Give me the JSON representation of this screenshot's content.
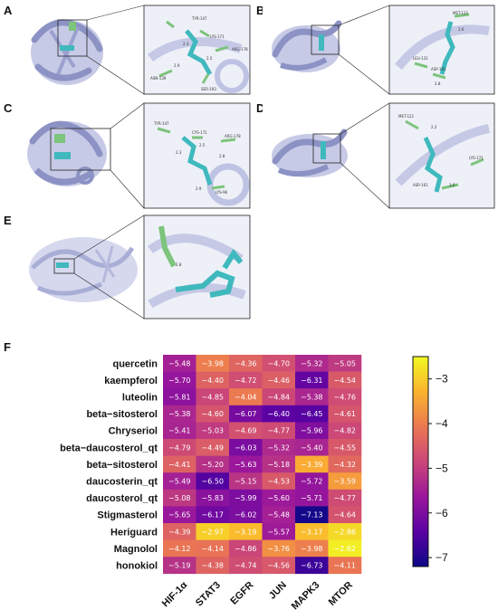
{
  "panels": {
    "A": {
      "letter": "A",
      "residues": [
        "TYR-147",
        "LYS-171",
        "ARG-178",
        "ASN-139",
        "SER-193"
      ],
      "distances": [
        "2.3",
        "2.5",
        "2.9"
      ]
    },
    "B": {
      "letter": "B",
      "residues": [
        "MET-121",
        "LEU-131",
        "ASP-161"
      ],
      "distances": [
        "2.6",
        "2.8"
      ]
    },
    "C": {
      "letter": "C",
      "residues": [
        "TYR-147",
        "CYS-171",
        "ARG-178",
        "LYS-96"
      ],
      "distances": [
        "2.3",
        "2.5",
        "2.8",
        "2.9"
      ]
    },
    "D": {
      "letter": "D",
      "residues": [
        "MET-121",
        "LYS-171",
        "ASP-161"
      ],
      "distances": [
        "2.2",
        "3.0"
      ]
    },
    "E": {
      "letter": "E",
      "residues": [],
      "distances": [
        "2.8"
      ]
    },
    "F": {
      "letter": "F"
    }
  },
  "colors": {
    "protein": "#a9aed6",
    "protein_dark": "#8c92c4",
    "ligand": "#3fb9bd",
    "residue": "#7dc47c"
  },
  "chart_data": {
    "type": "heatmap",
    "rows": [
      "quercetin",
      "kaempferol",
      "luteolin",
      "beta−sitosterol",
      "Chryseriol",
      "beta−daucosterol_qt",
      "beta−sitosterol",
      "daucosterin_qt",
      "daucosterol_qt",
      "Stigmasterol",
      "Heriguard",
      "Magnolol",
      "honokiol"
    ],
    "columns": [
      "HIF-1α",
      "STAT3",
      "EGFR",
      "JUN",
      "MAPK3",
      "MTOR"
    ],
    "values": [
      [
        -5.48,
        -3.98,
        -4.36,
        -4.7,
        -5.32,
        -5.05
      ],
      [
        -5.7,
        -4.4,
        -4.72,
        -4.46,
        -6.31,
        -4.54
      ],
      [
        -5.81,
        -4.85,
        -4.04,
        -4.84,
        -5.38,
        -4.76
      ],
      [
        -5.38,
        -4.6,
        -6.07,
        -6.4,
        -6.45,
        -4.61
      ],
      [
        -5.41,
        -5.03,
        -4.69,
        -4.77,
        -5.96,
        -4.82
      ],
      [
        -4.79,
        -4.49,
        -6.03,
        -5.32,
        -5.4,
        -4.55
      ],
      [
        -4.41,
        -5.2,
        -5.63,
        -5.18,
        -3.39,
        -4.32
      ],
      [
        -5.49,
        -6.5,
        -5.15,
        -4.53,
        -5.72,
        -3.59
      ],
      [
        -5.08,
        -5.83,
        -5.99,
        -5.6,
        -5.71,
        -4.77
      ],
      [
        -5.65,
        -6.17,
        -6.02,
        -5.48,
        -7.13,
        -4.64
      ],
      [
        -4.39,
        -2.97,
        -3.19,
        -5.57,
        -3.17,
        -2.86
      ],
      [
        -4.12,
        -4.14,
        -4.86,
        -3.76,
        -3.98,
        -2.62
      ],
      [
        -5.19,
        -4.38,
        -4.74,
        -4.56,
        -6.73,
        -4.11
      ]
    ],
    "value_labels": [
      [
        "−5.48",
        "−3.98",
        "−4.36",
        "−4.70",
        "−5.32",
        "−5.05"
      ],
      [
        "−5.70",
        "−4.40",
        "−4.72",
        "−4.46",
        "−6.31",
        "−4.54"
      ],
      [
        "−5.81",
        "−4.85",
        "−4.04",
        "−4.84",
        "−5.38",
        "−4.76"
      ],
      [
        "−5.38",
        "−4.60",
        "−6.07",
        "−6.40",
        "−6.45",
        "−4.61"
      ],
      [
        "−5.41",
        "−5.03",
        "−4.69",
        "−4.77",
        "−5.96",
        "−4.82"
      ],
      [
        "−4.79",
        "−4.49",
        "−6.03",
        "−5.32",
        "−5.40",
        "−4.55"
      ],
      [
        "−4.41",
        "−5.20",
        "−5.63",
        "−5.18",
        "−3.39",
        "−4.32"
      ],
      [
        "−5.49",
        "−6.50",
        "−5.15",
        "−4.53",
        "−5.72",
        "−3.59"
      ],
      [
        "−5.08",
        "−5.83",
        "−5.99",
        "−5.60",
        "−5.71",
        "−4.77"
      ],
      [
        "−5.65",
        "−6.17",
        "−6.02",
        "−5.48",
        "−7.13",
        "−4.64"
      ],
      [
        "−4.39",
        "−2.97",
        "−3.19",
        "−5.57",
        "−3.17",
        "−2.86"
      ],
      [
        "−4.12",
        "−4.14",
        "−4.86",
        "−3.76",
        "−3.98",
        "−2.62"
      ],
      [
        "−5.19",
        "−4.38",
        "−4.74",
        "−4.56",
        "−6.73",
        "−4.11"
      ]
    ],
    "colorbar": {
      "ticks": [
        -3,
        -4,
        -5,
        -6,
        -7
      ],
      "tick_labels": [
        "−3",
        "−4",
        "−5",
        "−6",
        "−7"
      ],
      "range": [
        -7.2,
        -2.5
      ],
      "colormap": [
        "#0d0887",
        "#5b02a3",
        "#9a179b",
        "#cb4678",
        "#eb7852",
        "#fbb32f",
        "#f0f921"
      ]
    }
  }
}
